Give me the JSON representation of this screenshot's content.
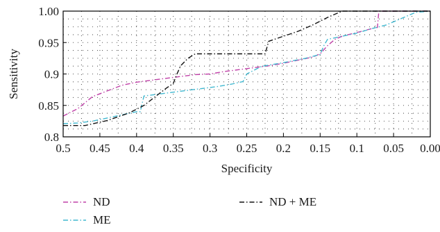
{
  "chart_data": {
    "type": "line",
    "title": "",
    "xlabel": "Specificity",
    "ylabel": "Sensitivity",
    "xlim": [
      0.5,
      0.0
    ],
    "ylim": [
      0.8,
      1.0
    ],
    "x_reversed": true,
    "x_ticks": [
      0.5,
      0.45,
      0.4,
      0.35,
      0.3,
      0.25,
      0.2,
      0.15,
      0.1,
      0.05,
      0.0
    ],
    "x_tick_labels": [
      "0.5",
      "0.45",
      "0.4",
      "0.35",
      "0.3",
      "0.25",
      "0.2",
      "0.15",
      "0.1",
      "0.05",
      "0.00"
    ],
    "y_ticks": [
      0.8,
      0.85,
      0.9,
      0.95,
      1.0
    ],
    "y_tick_labels": [
      "0.8",
      "0.85",
      "0.9",
      "0.95",
      "1.00"
    ],
    "grid": "dotted",
    "legend": "bottom",
    "series": [
      {
        "name": "ND",
        "color": "#c040a8",
        "dash": "dash-dot",
        "x": [
          0.5,
          0.48,
          0.46,
          0.44,
          0.42,
          0.4,
          0.38,
          0.36,
          0.34,
          0.32,
          0.3,
          0.28,
          0.26,
          0.24,
          0.22,
          0.2,
          0.18,
          0.16,
          0.15,
          0.14,
          0.13,
          0.12,
          0.1,
          0.08,
          0.072,
          0.07,
          0.05,
          0.02,
          0.0
        ],
        "y": [
          0.833,
          0.845,
          0.864,
          0.873,
          0.882,
          0.887,
          0.89,
          0.893,
          0.896,
          0.899,
          0.9,
          0.904,
          0.907,
          0.91,
          0.913,
          0.917,
          0.922,
          0.927,
          0.932,
          0.945,
          0.955,
          0.96,
          0.966,
          0.972,
          0.974,
          1.0,
          1.0,
          1.0,
          1.0
        ]
      },
      {
        "name": "ME",
        "color": "#40b8d0",
        "dash": "dash-dot",
        "x": [
          0.5,
          0.48,
          0.46,
          0.44,
          0.42,
          0.4,
          0.395,
          0.39,
          0.37,
          0.35,
          0.33,
          0.31,
          0.29,
          0.27,
          0.255,
          0.25,
          0.23,
          0.2,
          0.17,
          0.15,
          0.145,
          0.14,
          0.12,
          0.1,
          0.08,
          0.06,
          0.04,
          0.02,
          0.0
        ],
        "y": [
          0.821,
          0.822,
          0.825,
          0.83,
          0.835,
          0.84,
          0.84,
          0.865,
          0.868,
          0.871,
          0.874,
          0.877,
          0.88,
          0.884,
          0.888,
          0.9,
          0.912,
          0.918,
          0.925,
          0.931,
          0.945,
          0.955,
          0.96,
          0.965,
          0.972,
          0.978,
          0.988,
          0.998,
          1.0
        ]
      },
      {
        "name": "ND + ME",
        "color": "#111111",
        "dash": "dash-dot",
        "x": [
          0.5,
          0.47,
          0.44,
          0.41,
          0.39,
          0.37,
          0.36,
          0.35,
          0.345,
          0.34,
          0.33,
          0.32,
          0.3,
          0.28,
          0.26,
          0.24,
          0.225,
          0.22,
          0.2,
          0.18,
          0.16,
          0.14,
          0.12,
          0.1,
          0.08,
          0.05,
          0.02,
          0.0
        ],
        "y": [
          0.818,
          0.818,
          0.826,
          0.838,
          0.85,
          0.868,
          0.877,
          0.885,
          0.9,
          0.913,
          0.925,
          0.932,
          0.932,
          0.932,
          0.932,
          0.932,
          0.932,
          0.952,
          0.96,
          0.968,
          0.978,
          0.99,
          1.0,
          1.0,
          1.0,
          1.0,
          1.0,
          1.0
        ]
      }
    ]
  }
}
